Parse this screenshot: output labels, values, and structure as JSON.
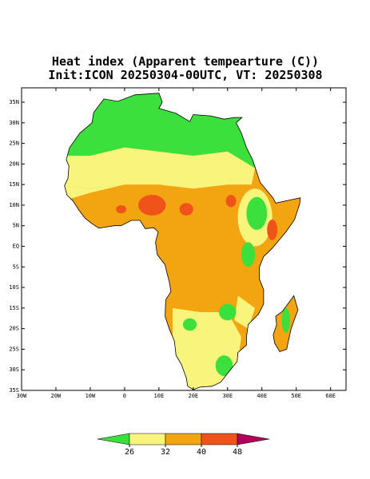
{
  "title": "Heat index (Apparent tempearture (C))",
  "subtitle": "Init:ICON 20250304-00UTC, VT: 20250308",
  "map": {
    "lonlim": [
      -30,
      64.5
    ],
    "latlim": [
      -35,
      38.5
    ],
    "lon_ticks": [
      {
        "value": -30,
        "label": "30W"
      },
      {
        "value": -20,
        "label": "20W"
      },
      {
        "value": -10,
        "label": "10W"
      },
      0,
      {
        "value": 10,
        "label": "10E"
      },
      {
        "value": 20,
        "label": "20E"
      },
      {
        "value": 30,
        "label": "30E"
      },
      {
        "value": 40,
        "label": "40E"
      },
      {
        "value": 50,
        "label": "50E"
      },
      {
        "value": 60,
        "label": "60E"
      }
    ],
    "lat_ticks": [
      {
        "value": 35,
        "label": "35N"
      },
      {
        "value": 30,
        "label": "30N"
      },
      {
        "value": 25,
        "label": "25N"
      },
      {
        "value": 20,
        "label": "20N"
      },
      {
        "value": 15,
        "label": "15N"
      },
      {
        "value": 10,
        "label": "10N"
      },
      {
        "value": 5,
        "label": "5N"
      },
      {
        "value": 0,
        "label": "EQ"
      },
      {
        "value": -5,
        "label": "5S"
      },
      {
        "value": -10,
        "label": "10S"
      },
      {
        "value": -15,
        "label": "15S"
      },
      {
        "value": -20,
        "label": "20S"
      },
      {
        "value": -25,
        "label": "25S"
      },
      {
        "value": -30,
        "label": "30S"
      },
      {
        "value": -35,
        "label": "35S"
      }
    ]
  },
  "colorbar": {
    "levels": [
      26,
      32,
      40,
      48
    ],
    "colors": [
      "#3ce03c",
      "#f8f47c",
      "#f2a411",
      "#f0531a",
      "#b0005a"
    ]
  }
}
